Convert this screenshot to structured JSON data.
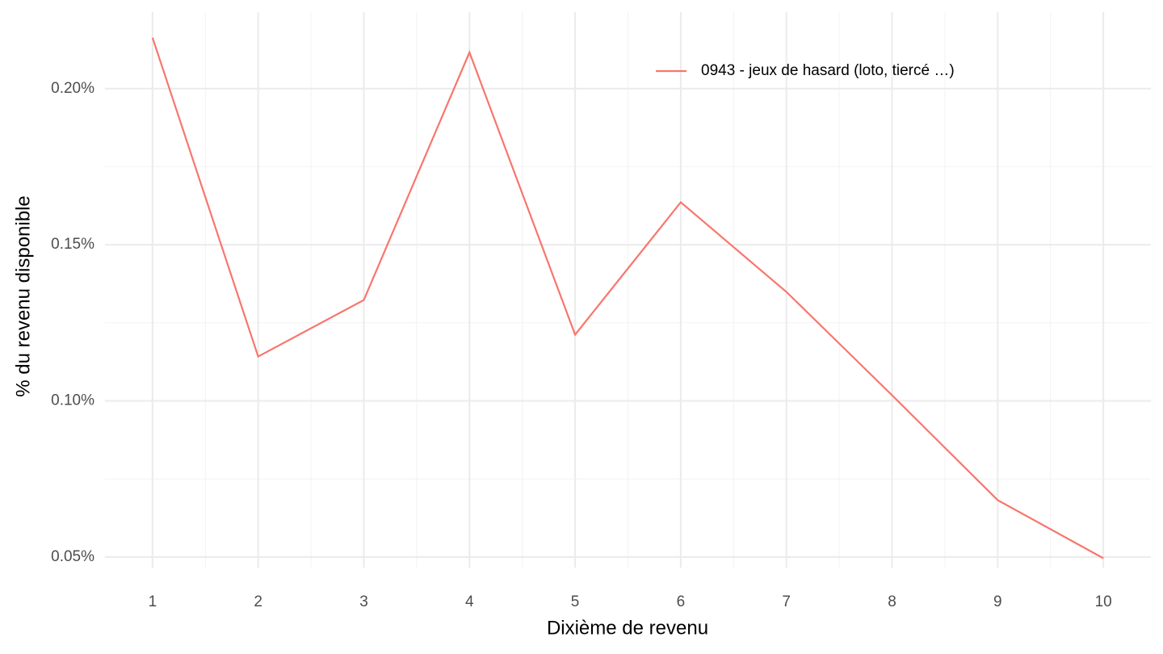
{
  "chart_data": {
    "type": "line",
    "x_label": "Dixième de revenu",
    "y_label": "% du revenu disponible",
    "x": [
      1,
      2,
      3,
      4,
      5,
      6,
      7,
      8,
      9,
      10
    ],
    "series": [
      {
        "name": "0943 - jeux de hasard (loto, tiercé …)",
        "color": "#F8766D",
        "values": [
          0.2163,
          0.1142,
          0.1323,
          0.2116,
          0.1212,
          0.1636,
          0.1349,
          0.1018,
          0.0682,
          0.0496
        ]
      }
    ],
    "xlim": [
      0.55,
      10.45
    ],
    "xticks": [
      1,
      2,
      3,
      4,
      5,
      6,
      7,
      8,
      9,
      10
    ],
    "ylim": [
      0.0466,
      0.2245
    ],
    "yticks": [
      {
        "value": 0.05,
        "label": "0.05%"
      },
      {
        "value": 0.1,
        "label": "0.10%"
      },
      {
        "value": 0.15,
        "label": "0.15%"
      },
      {
        "value": 0.2,
        "label": "0.20%"
      }
    ],
    "grid": true,
    "legend": "top-right"
  }
}
